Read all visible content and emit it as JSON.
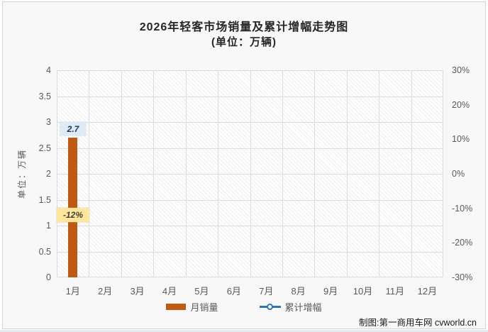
{
  "chart_data": {
    "type": "bar",
    "title": "2026年轻客市场销量及累计增幅走势图",
    "subtitle": "(单位：万辆)",
    "ylabel_left": "单位：万辆",
    "categories": [
      "1月",
      "2月",
      "3月",
      "4月",
      "5月",
      "6月",
      "7月",
      "8月",
      "9月",
      "10月",
      "11月",
      "12月"
    ],
    "series": [
      {
        "name": "月销量",
        "type": "bar",
        "color": "#C05A11",
        "axis": "left",
        "values": [
          2.7,
          null,
          null,
          null,
          null,
          null,
          null,
          null,
          null,
          null,
          null,
          null
        ]
      },
      {
        "name": "累计增幅",
        "type": "line",
        "color": "#2E75B6",
        "axis": "right",
        "values": [
          -12,
          null,
          null,
          null,
          null,
          null,
          null,
          null,
          null,
          null,
          null,
          null
        ]
      }
    ],
    "left_axis": {
      "min": 0,
      "max": 4,
      "step": 0.5,
      "ticks": [
        "4",
        "3.5",
        "3",
        "2.5",
        "2",
        "1.5",
        "1",
        "0.5",
        "0"
      ]
    },
    "right_axis": {
      "min": -30,
      "max": 30,
      "step": 10,
      "ticks": [
        "30%",
        "20%",
        "10%",
        "0%",
        "-10%",
        "-20%",
        "-30%"
      ]
    },
    "grid": true,
    "plot_fill": "diagonal-hatch",
    "legend_position": "bottom",
    "data_labels": [
      {
        "series": "月销量",
        "category": "1月",
        "text": "2.7",
        "bg": "#DEEAF6",
        "color": "#17375E"
      },
      {
        "series": "累计增幅",
        "category": "1月",
        "text": "-12%",
        "bg": "#FFE699",
        "color": "#3F3F3F"
      }
    ]
  },
  "footer": {
    "credit": "制图:第一商用车网 cvworld.cn"
  }
}
